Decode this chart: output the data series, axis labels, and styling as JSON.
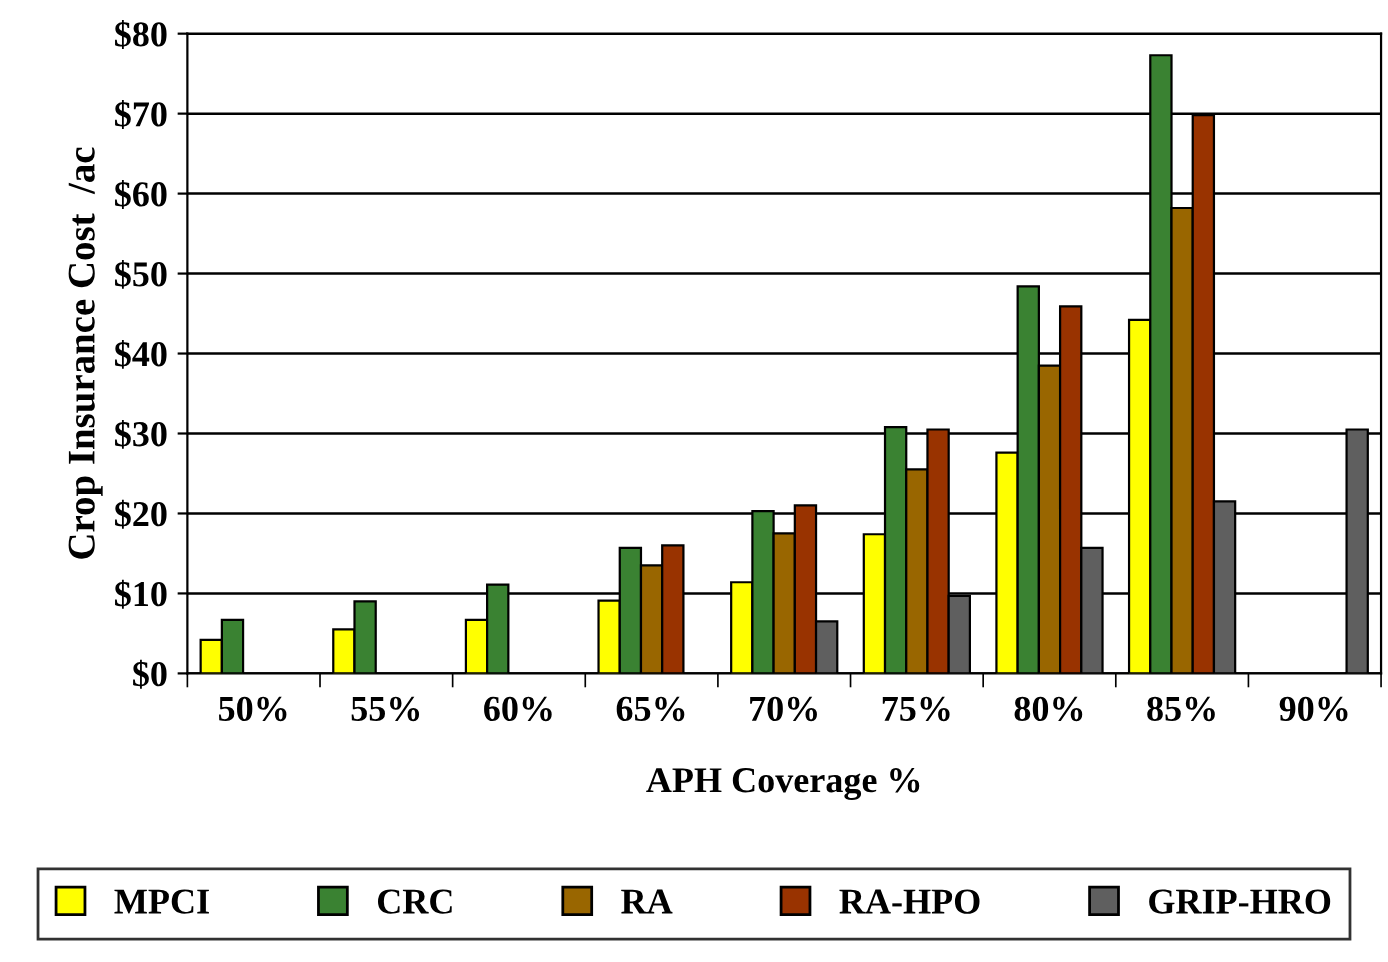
{
  "chart_data": {
    "type": "bar",
    "xlabel": "APH Coverage %",
    "ylabel": "Crop Insurance Cost  /ac",
    "categories": [
      "50%",
      "55%",
      "60%",
      "65%",
      "70%",
      "75%",
      "80%",
      "85%",
      "90%"
    ],
    "series": [
      {
        "name": "MPCI",
        "color": "#ffff00",
        "values": [
          4.2,
          5.5,
          6.7,
          9.1,
          11.4,
          17.4,
          27.6,
          44.2,
          null
        ]
      },
      {
        "name": "CRC",
        "color": "#3a8232",
        "values": [
          6.7,
          9.0,
          11.1,
          15.7,
          20.3,
          30.8,
          48.4,
          77.3,
          null
        ]
      },
      {
        "name": "RA",
        "color": "#996600",
        "values": [
          null,
          null,
          null,
          13.5,
          17.5,
          25.5,
          38.5,
          58.2,
          null
        ]
      },
      {
        "name": "RA-HPO",
        "color": "#993300",
        "values": [
          null,
          null,
          null,
          16.0,
          21.0,
          30.5,
          45.9,
          69.8,
          null
        ]
      },
      {
        "name": "GRIP-HRO",
        "color": "#5f5f5f",
        "values": [
          null,
          null,
          null,
          null,
          6.5,
          9.7,
          15.7,
          21.5,
          30.5
        ]
      }
    ],
    "ylim": [
      0,
      80
    ],
    "yticks": [
      {
        "value": 0,
        "label": "$0"
      },
      {
        "value": 10,
        "label": "$10"
      },
      {
        "value": 20,
        "label": "$20"
      },
      {
        "value": 30,
        "label": "$30"
      },
      {
        "value": 40,
        "label": "$40"
      },
      {
        "value": 50,
        "label": "$50"
      },
      {
        "value": 60,
        "label": "$60"
      },
      {
        "value": 70,
        "label": "$70"
      },
      {
        "value": 80,
        "label": "$80"
      }
    ],
    "grid": "y",
    "legend": "bottom"
  }
}
